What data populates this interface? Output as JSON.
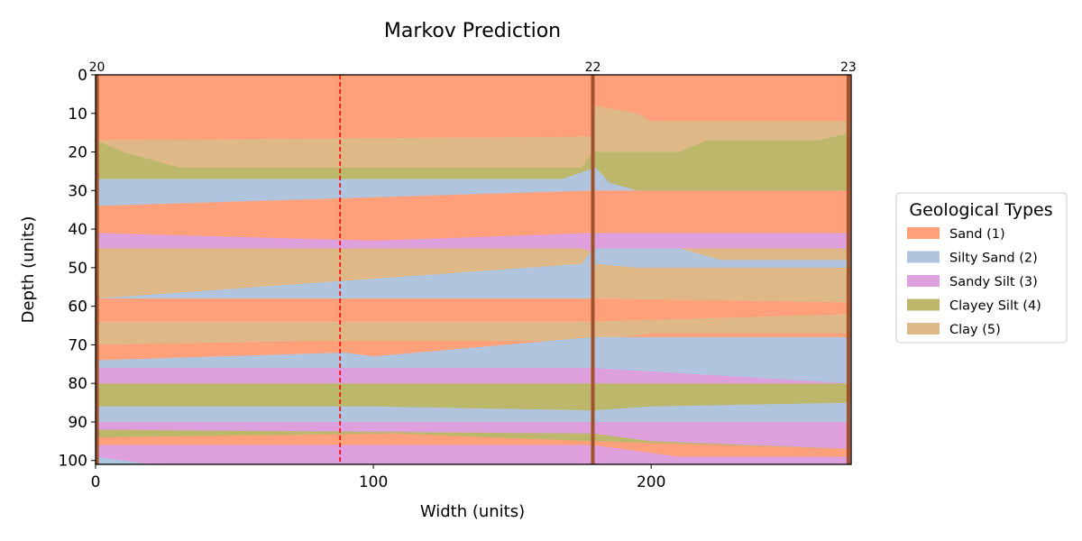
{
  "chart_data": {
    "type": "heatmap",
    "title": "Markov Prediction",
    "xlabel": "Width (units)",
    "ylabel": "Depth (units)",
    "xlim": [
      0,
      272
    ],
    "ylim": [
      101,
      0
    ],
    "xticks": [
      0,
      100,
      200
    ],
    "yticks": [
      0,
      10,
      20,
      30,
      40,
      50,
      60,
      70,
      80,
      90,
      100
    ],
    "legend": {
      "title": "Geological Types",
      "placement": "right",
      "items": [
        {
          "code": 1,
          "label": "Sand (1)",
          "color": "#ffa07a"
        },
        {
          "code": 2,
          "label": "Silty Sand (2)",
          "color": "#b0c4de"
        },
        {
          "code": 3,
          "label": "Sandy Silt (3)",
          "color": "#dda0dd"
        },
        {
          "code": 4,
          "label": "Clayey Silt (4)",
          "color": "#bdb76b"
        },
        {
          "code": 5,
          "label": "Clay (5)",
          "color": "#deb887"
        }
      ]
    },
    "wells": [
      {
        "name": "20",
        "x": 0.5
      },
      {
        "name": "22",
        "x": 179
      },
      {
        "name": "23",
        "x": 271
      }
    ],
    "well_color": "#a0522d",
    "prediction_line": {
      "x": 88,
      "color": "#ff0000",
      "style": "dashed"
    },
    "layers": [
      {
        "code": 1,
        "points": [
          [
            0,
            0
          ],
          [
            272,
            0
          ]
        ]
      },
      {
        "code": 5,
        "points": [
          [
            0,
            17
          ],
          [
            179,
            16
          ],
          [
            180,
            8
          ],
          [
            195,
            10
          ],
          [
            200,
            12
          ],
          [
            272,
            12
          ]
        ]
      },
      {
        "code": 4,
        "points": [
          [
            0,
            17
          ],
          [
            10,
            20
          ],
          [
            30,
            24
          ],
          [
            175,
            24
          ],
          [
            179,
            20
          ],
          [
            180,
            20
          ],
          [
            210,
            20
          ],
          [
            220,
            17
          ],
          [
            260,
            17
          ],
          [
            272,
            15
          ]
        ]
      },
      {
        "code": 2,
        "points": [
          [
            0,
            27
          ],
          [
            168,
            27
          ],
          [
            180,
            24
          ],
          [
            185,
            28
          ],
          [
            195,
            30
          ],
          [
            272,
            30
          ]
        ]
      },
      {
        "code": 1,
        "points": [
          [
            0,
            34
          ],
          [
            179,
            30
          ],
          [
            272,
            30
          ]
        ]
      },
      {
        "code": 3,
        "points": [
          [
            0,
            41
          ],
          [
            100,
            43
          ],
          [
            179,
            41
          ],
          [
            272,
            41
          ]
        ]
      },
      {
        "code": 5,
        "points": [
          [
            0,
            45
          ],
          [
            175,
            45
          ],
          [
            179,
            46
          ],
          [
            190,
            45
          ],
          [
            272,
            45
          ]
        ]
      },
      {
        "code": 2,
        "points": [
          [
            0,
            58
          ],
          [
            175,
            49
          ],
          [
            179,
            45
          ],
          [
            210,
            45
          ],
          [
            225,
            48
          ],
          [
            272,
            48
          ]
        ]
      },
      {
        "code": 5,
        "points": [
          [
            0,
            58
          ],
          [
            179,
            58
          ],
          [
            180,
            49
          ],
          [
            195,
            50
          ],
          [
            272,
            50
          ]
        ]
      },
      {
        "code": 1,
        "points": [
          [
            0,
            58
          ],
          [
            179,
            58
          ],
          [
            272,
            59
          ]
        ]
      },
      {
        "code": 5,
        "points": [
          [
            0,
            64
          ],
          [
            179,
            64
          ],
          [
            272,
            62
          ]
        ]
      },
      {
        "code": 1,
        "points": [
          [
            0,
            70
          ],
          [
            80,
            69
          ],
          [
            179,
            69
          ],
          [
            200,
            67
          ],
          [
            272,
            67
          ]
        ]
      },
      {
        "code": 2,
        "points": [
          [
            0,
            74
          ],
          [
            90,
            72
          ],
          [
            100,
            73
          ],
          [
            179,
            68
          ],
          [
            272,
            68
          ]
        ]
      },
      {
        "code": 3,
        "points": [
          [
            0,
            76
          ],
          [
            80,
            76
          ],
          [
            179,
            76
          ],
          [
            272,
            80
          ]
        ]
      },
      {
        "code": 4,
        "points": [
          [
            0,
            80
          ],
          [
            179,
            80
          ],
          [
            200,
            80
          ],
          [
            272,
            80
          ]
        ]
      },
      {
        "code": 2,
        "points": [
          [
            0,
            86
          ],
          [
            100,
            86
          ],
          [
            179,
            87
          ],
          [
            200,
            86
          ],
          [
            272,
            85
          ]
        ]
      },
      {
        "code": 3,
        "points": [
          [
            0,
            90
          ],
          [
            100,
            90
          ],
          [
            179,
            90
          ],
          [
            272,
            90
          ]
        ]
      },
      {
        "code": 4,
        "points": [
          [
            0,
            92
          ],
          [
            179,
            93
          ],
          [
            200,
            95
          ],
          [
            272,
            97
          ]
        ]
      },
      {
        "code": 1,
        "points": [
          [
            0,
            94
          ],
          [
            107,
            93
          ],
          [
            179,
            95
          ],
          [
            272,
            97
          ]
        ]
      },
      {
        "code": 3,
        "points": [
          [
            0,
            96
          ],
          [
            50,
            96
          ],
          [
            179,
            96
          ],
          [
            210,
            99
          ],
          [
            272,
            99
          ]
        ]
      },
      {
        "code": 2,
        "points": [
          [
            0,
            99
          ],
          [
            20,
            101
          ],
          [
            272,
            101
          ]
        ]
      }
    ]
  }
}
